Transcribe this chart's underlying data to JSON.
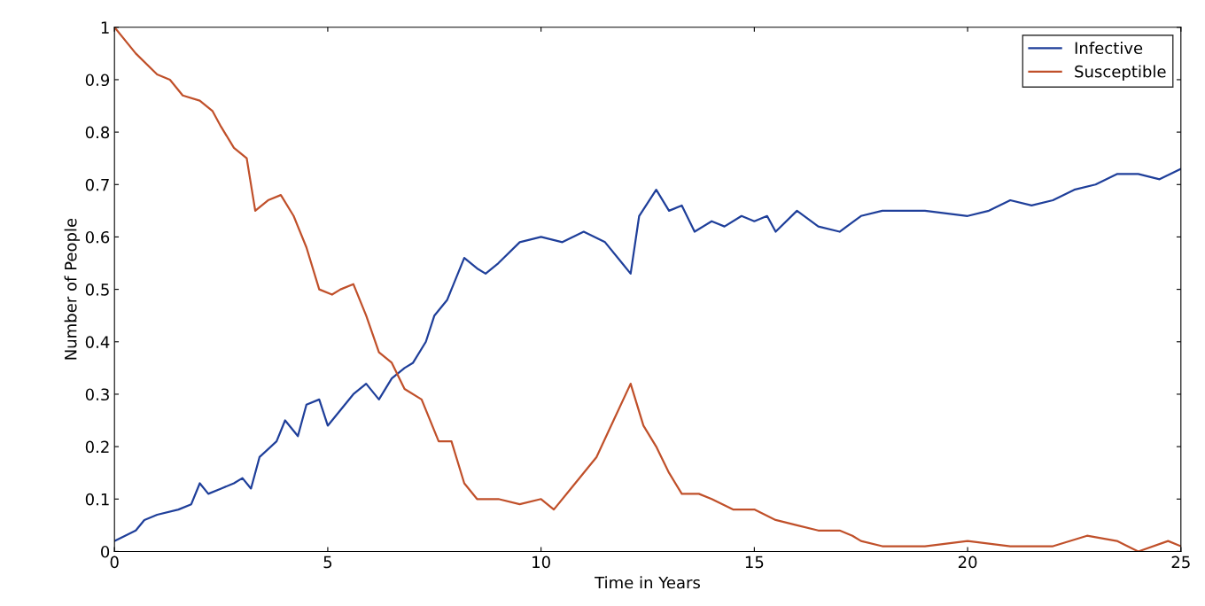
{
  "chart_data": {
    "type": "line",
    "xlabel": "Time in Years",
    "ylabel": "Number of People",
    "xlim": [
      0,
      25
    ],
    "ylim": [
      0,
      1
    ],
    "xticks": [
      0,
      5,
      10,
      15,
      20,
      25
    ],
    "yticks": [
      0,
      0.1,
      0.2,
      0.3,
      0.4,
      0.5,
      0.6,
      0.7,
      0.8,
      0.9,
      1
    ],
    "legend": "top right",
    "grid": false,
    "series": [
      {
        "name": "Infective",
        "color": "#1f3f9a",
        "x": [
          0,
          0.25,
          0.5,
          0.7,
          1.0,
          1.5,
          1.8,
          2.0,
          2.2,
          2.5,
          2.8,
          3.0,
          3.2,
          3.4,
          3.8,
          4.0,
          4.3,
          4.5,
          4.8,
          5.0,
          5.3,
          5.6,
          5.9,
          6.2,
          6.5,
          6.8,
          7.0,
          7.3,
          7.5,
          7.8,
          8.2,
          8.5,
          8.7,
          9.0,
          9.5,
          10.0,
          10.5,
          11.0,
          11.5,
          11.9,
          12.1,
          12.3,
          12.7,
          13.0,
          13.3,
          13.6,
          14.0,
          14.3,
          14.7,
          15.0,
          15.3,
          15.5,
          16.0,
          16.5,
          17.0,
          17.5,
          18.0,
          19.0,
          20.0,
          20.5,
          21.0,
          21.5,
          22.0,
          22.5,
          23.0,
          23.5,
          24.0,
          24.5,
          25.0
        ],
        "values": [
          0.02,
          0.03,
          0.04,
          0.06,
          0.07,
          0.08,
          0.09,
          0.13,
          0.11,
          0.12,
          0.13,
          0.14,
          0.12,
          0.18,
          0.21,
          0.25,
          0.22,
          0.28,
          0.29,
          0.24,
          0.27,
          0.3,
          0.32,
          0.29,
          0.33,
          0.35,
          0.36,
          0.4,
          0.45,
          0.48,
          0.56,
          0.54,
          0.53,
          0.55,
          0.59,
          0.6,
          0.59,
          0.61,
          0.59,
          0.55,
          0.53,
          0.64,
          0.69,
          0.65,
          0.66,
          0.61,
          0.63,
          0.62,
          0.64,
          0.63,
          0.64,
          0.61,
          0.65,
          0.62,
          0.61,
          0.64,
          0.65,
          0.65,
          0.64,
          0.65,
          0.67,
          0.66,
          0.67,
          0.69,
          0.7,
          0.72,
          0.72,
          0.71,
          0.73
        ]
      },
      {
        "name": "Susceptible",
        "color": "#c0502a",
        "x": [
          0,
          0.5,
          1.0,
          1.3,
          1.6,
          2.0,
          2.3,
          2.5,
          2.8,
          3.1,
          3.3,
          3.6,
          3.9,
          4.2,
          4.5,
          4.8,
          5.1,
          5.3,
          5.6,
          5.9,
          6.2,
          6.5,
          6.8,
          7.2,
          7.6,
          7.9,
          8.2,
          8.5,
          9.0,
          9.5,
          10.0,
          10.3,
          10.7,
          11.0,
          11.3,
          11.7,
          12.1,
          12.4,
          12.7,
          13.0,
          13.3,
          13.7,
          14.0,
          14.5,
          15.0,
          15.5,
          16.0,
          16.5,
          17.0,
          17.3,
          17.5,
          18.0,
          19.0,
          20.0,
          21.0,
          22.0,
          22.8,
          23.5,
          24.0,
          24.7,
          25.0
        ],
        "values": [
          1.0,
          0.95,
          0.91,
          0.9,
          0.87,
          0.86,
          0.84,
          0.81,
          0.77,
          0.75,
          0.65,
          0.67,
          0.68,
          0.64,
          0.58,
          0.5,
          0.49,
          0.5,
          0.51,
          0.45,
          0.38,
          0.36,
          0.31,
          0.29,
          0.21,
          0.21,
          0.13,
          0.1,
          0.1,
          0.09,
          0.1,
          0.08,
          0.12,
          0.15,
          0.18,
          0.25,
          0.32,
          0.24,
          0.2,
          0.15,
          0.11,
          0.11,
          0.1,
          0.08,
          0.08,
          0.06,
          0.05,
          0.04,
          0.04,
          0.03,
          0.02,
          0.01,
          0.01,
          0.02,
          0.01,
          0.01,
          0.03,
          0.02,
          0.0,
          0.02,
          0.01
        ]
      }
    ]
  }
}
